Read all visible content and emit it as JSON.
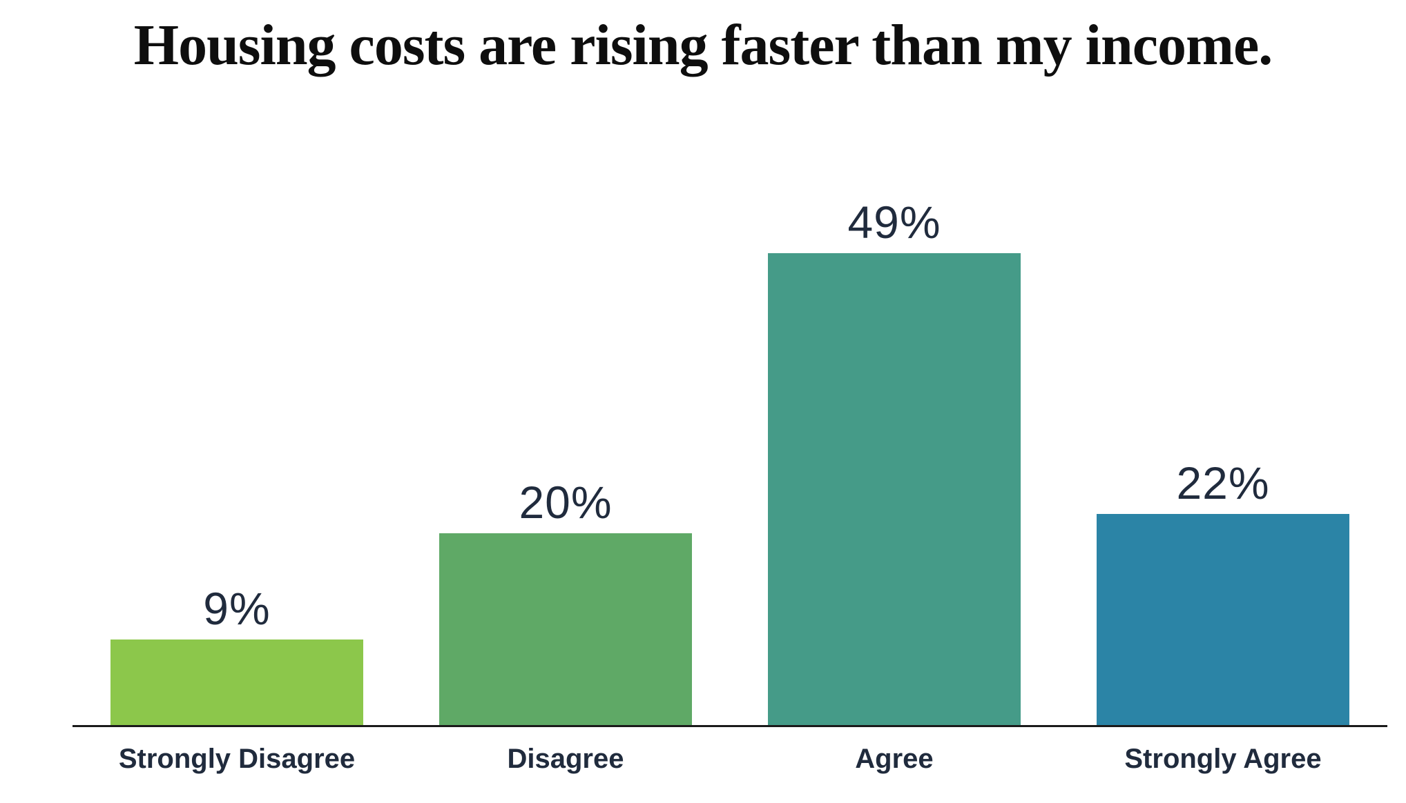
{
  "chart": {
    "title": "Housing costs are rising faster than my income."
  },
  "chart_data": {
    "type": "bar",
    "title": "Housing costs are rising faster than my income.",
    "categories": [
      "Strongly Disagree",
      "Disagree",
      "Agree",
      "Strongly Agree"
    ],
    "values": [
      9,
      20,
      49,
      22
    ],
    "value_labels": [
      "9%",
      "20%",
      "49%",
      "22%"
    ],
    "value_suffix": "%",
    "bar_colors": [
      "#8CC74B",
      "#5FA966",
      "#459B88",
      "#2B84A6"
    ],
    "label_color": "#202B3D",
    "title_color": "#0e0e0e",
    "axis_color": "#1a1a1a",
    "xlabel": "",
    "ylabel": "",
    "ylim": [
      0,
      55
    ],
    "grid": false,
    "legend": "none",
    "data_labels_position": "above-bars",
    "background": "#ffffff"
  }
}
